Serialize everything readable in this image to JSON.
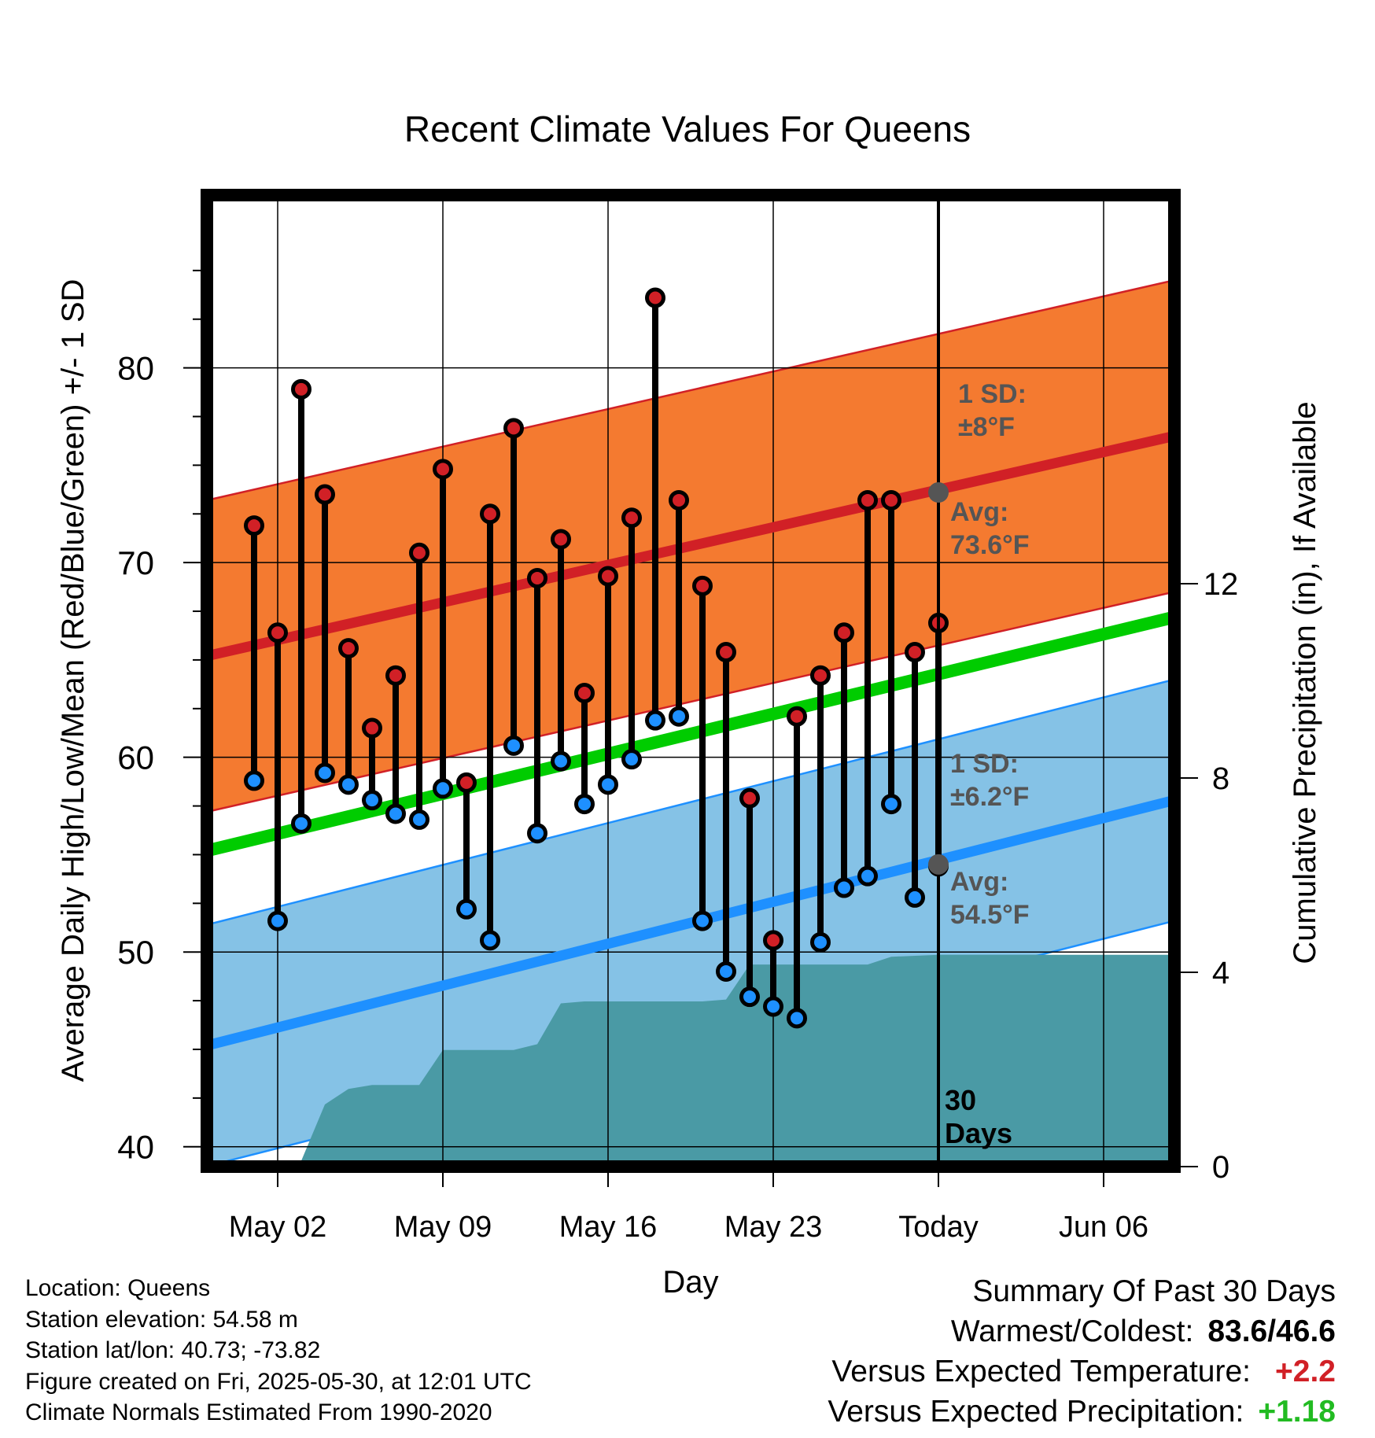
{
  "chart_data": {
    "type": "line",
    "title": "Recent Climate Values For Queens",
    "xlabel": "Day",
    "ylabel": "Average Daily High/Low/Mean (Red/Blue/Green) +/- 1 SD",
    "y2label": "Cumulative Precipitation (in), If Available",
    "x_range": [
      "2025-04-29",
      "2025-06-09"
    ],
    "ylim": [
      38.979,
      88.873
    ],
    "y2lim": [
      0,
      20
    ],
    "y_ticks": [
      40,
      50,
      60,
      70,
      80
    ],
    "y2_ticks": [
      0,
      4,
      8,
      12
    ],
    "x_ticks": [
      {
        "date": "2025-05-02",
        "label": "May 02"
      },
      {
        "date": "2025-05-09",
        "label": "May 09"
      },
      {
        "date": "2025-05-16",
        "label": "May 16"
      },
      {
        "date": "2025-05-23",
        "label": "May 23"
      },
      {
        "date": "2025-05-30",
        "label": "Today"
      },
      {
        "date": "2025-06-06",
        "label": "Jun 06"
      }
    ],
    "grid": true,
    "today": "2025-05-30",
    "dates": [
      "2025-05-01",
      "2025-05-02",
      "2025-05-03",
      "2025-05-04",
      "2025-05-05",
      "2025-05-06",
      "2025-05-07",
      "2025-05-08",
      "2025-05-09",
      "2025-05-10",
      "2025-05-11",
      "2025-05-12",
      "2025-05-13",
      "2025-05-14",
      "2025-05-15",
      "2025-05-16",
      "2025-05-17",
      "2025-05-18",
      "2025-05-19",
      "2025-05-20",
      "2025-05-21",
      "2025-05-22",
      "2025-05-23",
      "2025-05-24",
      "2025-05-25",
      "2025-05-26",
      "2025-05-27",
      "2025-05-28",
      "2025-05-29",
      "2025-05-30"
    ],
    "highs": [
      71.9,
      66.4,
      78.9,
      73.5,
      65.6,
      61.5,
      64.2,
      70.5,
      74.8,
      58.7,
      72.5,
      76.9,
      69.2,
      71.2,
      63.3,
      69.3,
      72.3,
      83.6,
      73.2,
      68.8,
      65.4,
      57.9,
      50.6,
      62.1,
      64.2,
      66.4,
      73.2,
      73.2,
      65.4,
      66.9
    ],
    "lows": [
      58.8,
      51.6,
      56.6,
      59.2,
      58.6,
      57.8,
      57.1,
      56.8,
      58.4,
      52.2,
      50.6,
      60.6,
      56.1,
      59.8,
      57.6,
      58.6,
      59.9,
      61.9,
      62.1,
      51.6,
      49.0,
      47.7,
      47.2,
      46.6,
      50.5,
      53.3,
      53.9,
      57.6,
      52.8,
      54.4
    ],
    "normals": {
      "high_mean": {
        "start": 65.2,
        "end": 76.5
      },
      "high_sd": 8,
      "low_mean": {
        "start": 45.2,
        "end": 57.8
      },
      "low_sd": 6.2,
      "mean": {
        "start": 55.2,
        "end": 67.2
      }
    },
    "precip_cumulative": [
      {
        "date": "2025-04-29",
        "value": 0.0
      },
      {
        "date": "2025-05-03",
        "value": 0.0
      },
      {
        "date": "2025-05-03",
        "value": 0.12
      },
      {
        "date": "2025-05-04",
        "value": 1.28
      },
      {
        "date": "2025-05-05",
        "value": 1.6
      },
      {
        "date": "2025-05-06",
        "value": 1.68
      },
      {
        "date": "2025-05-08",
        "value": 1.68
      },
      {
        "date": "2025-05-09",
        "value": 2.4
      },
      {
        "date": "2025-05-12",
        "value": 2.4
      },
      {
        "date": "2025-05-13",
        "value": 2.52
      },
      {
        "date": "2025-05-14",
        "value": 3.36
      },
      {
        "date": "2025-05-15",
        "value": 3.4
      },
      {
        "date": "2025-05-20",
        "value": 3.4
      },
      {
        "date": "2025-05-21",
        "value": 3.44
      },
      {
        "date": "2025-05-22",
        "value": 4.16
      },
      {
        "date": "2025-05-27",
        "value": 4.16
      },
      {
        "date": "2025-05-28",
        "value": 4.32
      },
      {
        "date": "2025-05-30",
        "value": 4.36
      },
      {
        "date": "2025-06-09",
        "value": 4.36
      }
    ],
    "annotations": {
      "high_sd_label": [
        "1 SD:",
        "±8°F"
      ],
      "high_avg_label": [
        "Avg:",
        "73.6°F"
      ],
      "low_sd_label": [
        "1 SD:",
        "±6.2°F"
      ],
      "low_avg_label": [
        "Avg:",
        "54.5°F"
      ],
      "high_avg_value": 73.6,
      "low_avg_value": 54.5,
      "days_label": [
        "30",
        "Days"
      ]
    },
    "colors": {
      "high": "#d12026",
      "high_band": "#f47a30",
      "low": "#1e90ff",
      "low_band": "#85c2e6",
      "mean": "#00cc00",
      "precip": "#4a9aa5",
      "annotation": "#555555"
    }
  },
  "footer": {
    "location": "Location: Queens",
    "elevation": "Station elevation: 54.58 m",
    "latlon": "Station lat/lon: 40.73; -73.82",
    "created": "Figure created on Fri, 2025-05-30, at 12:01 UTC",
    "normals_source": "Climate Normals Estimated From 1990-2020"
  },
  "summary": {
    "title": "Summary Of Past 30 Days",
    "warmest_label": "Warmest/Coldest:",
    "warmest_value": "83.6/46.6",
    "temp_label": "Versus Expected Temperature:",
    "temp_value": "+2.2",
    "temp_color": "#d12026",
    "precip_label": "Versus Expected Precipitation:",
    "precip_value": "+1.18",
    "precip_color": "#22bb22"
  }
}
